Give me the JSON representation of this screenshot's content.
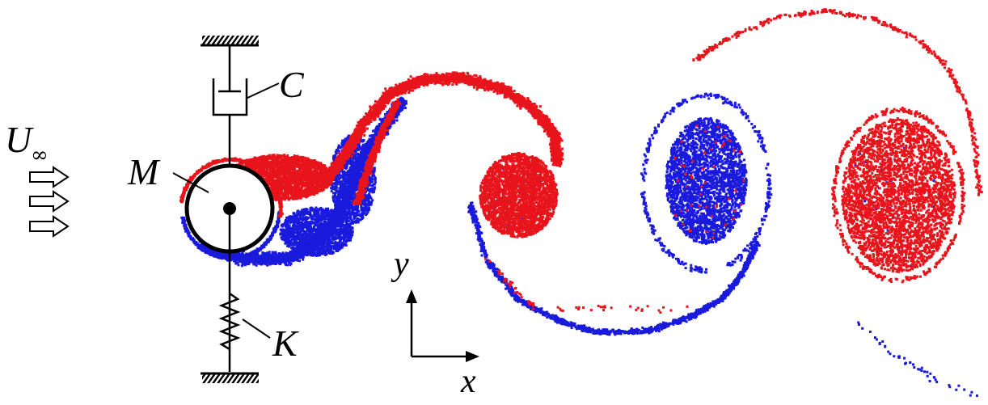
{
  "labels": {
    "freestream_velocity": "U",
    "freestream_subscript": "∞",
    "mass": "M",
    "damper": "C",
    "spring": "K",
    "x_axis": "x",
    "y_axis": "y"
  },
  "colors": {
    "wake_red": "#e8141c",
    "wake_blue": "#1a1adc",
    "structure": "#000000",
    "background": "#ffffff"
  },
  "icons": [
    "flow-arrow-icon",
    "ground-hatch-icon",
    "damper-icon",
    "spring-icon",
    "cylinder-icon"
  ]
}
